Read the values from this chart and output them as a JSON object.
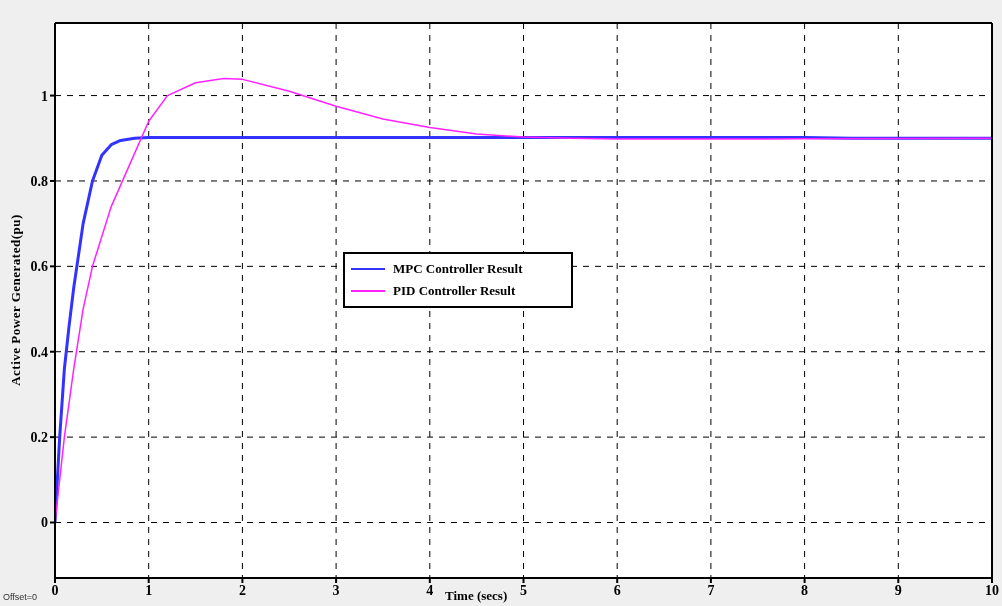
{
  "chart_data": {
    "type": "line",
    "xlabel": "Time (secs)",
    "ylabel": "Active Power Generated(pu)",
    "annotations": [
      "Offset=0"
    ],
    "xlim": [
      0,
      10
    ],
    "xticks": [
      0,
      1,
      2,
      3,
      4,
      5,
      6,
      7,
      8,
      9,
      10
    ],
    "ylim": [
      -0.13,
      1.17
    ],
    "yticks": [
      0,
      0.2,
      0.4,
      0.6,
      0.8,
      1
    ],
    "grid": true,
    "legend": "center",
    "line_style": "solid",
    "marker": "none",
    "series": [
      {
        "name": "MPC Controller Result",
        "color": "#3333ff",
        "x": [
          0,
          0.05,
          0.1,
          0.15,
          0.2,
          0.3,
          0.4,
          0.5,
          0.6,
          0.7,
          0.85,
          1,
          2,
          4,
          6,
          8,
          8.5,
          10
        ],
        "values": [
          0,
          0.2,
          0.36,
          0.46,
          0.55,
          0.7,
          0.8,
          0.86,
          0.885,
          0.895,
          0.9,
          0.902,
          0.902,
          0.902,
          0.902,
          0.902,
          0.9,
          0.9
        ]
      },
      {
        "name": "PID Controller Result",
        "color": "#ff22ff",
        "x": [
          0,
          0.1,
          0.2,
          0.3,
          0.4,
          0.6,
          0.8,
          1,
          1.2,
          1.5,
          1.8,
          2,
          2.5,
          3,
          3.5,
          4,
          4.5,
          5,
          5.5,
          6,
          7,
          8,
          10
        ],
        "values": [
          0,
          0.2,
          0.36,
          0.5,
          0.6,
          0.74,
          0.84,
          0.94,
          1.0,
          1.03,
          1.04,
          1.038,
          1.01,
          0.975,
          0.945,
          0.925,
          0.91,
          0.903,
          0.9,
          0.898,
          0.898,
          0.899,
          0.9
        ]
      }
    ]
  }
}
